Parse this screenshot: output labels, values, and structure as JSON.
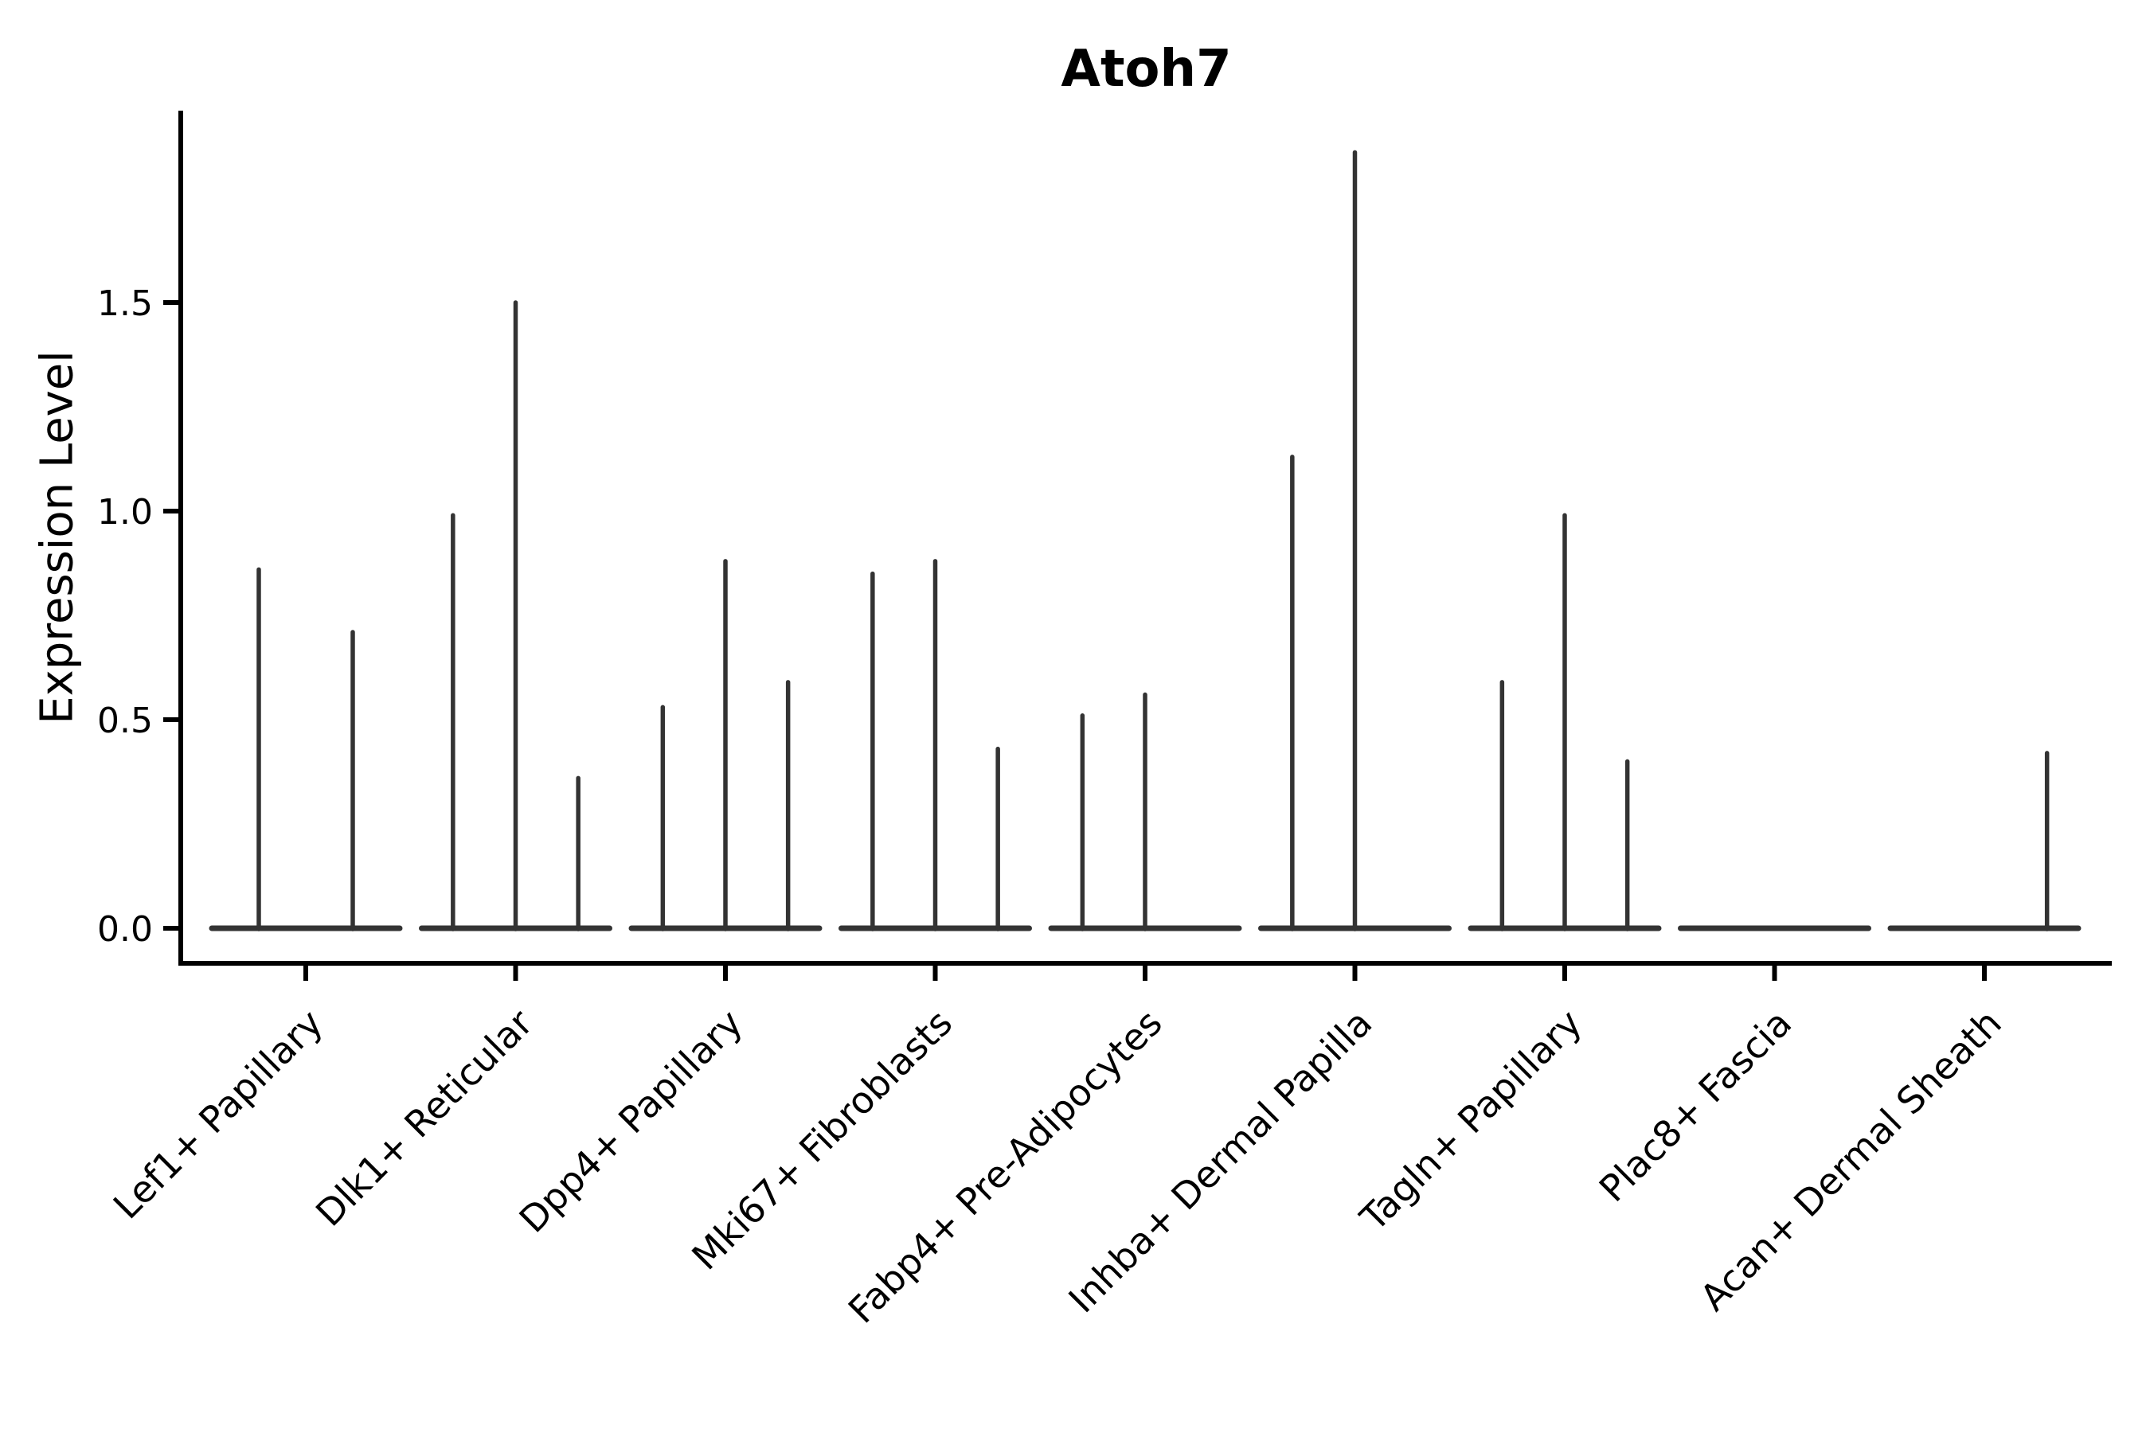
{
  "figure": {
    "title": "Atoh7",
    "background_color": "#ffffff"
  },
  "chart_data": {
    "type": "violin",
    "title": "Atoh7",
    "xlabel": "",
    "ylabel": "Expression Level",
    "yticks": [
      0.0,
      0.5,
      1.0,
      1.5
    ],
    "ytick_labels": [
      "0.0",
      "0.5",
      "1.0",
      "1.5"
    ],
    "ylim": [
      -0.084,
      1.957
    ],
    "grid": false,
    "legend": "none",
    "description": "Sparse single-cell violin plot: each cell-type group shows adjacent near-zero-width violins (flat baseline at 0 with thin vertical spikes at max expression).",
    "categories": [
      "Lef1+ Papillary",
      "Dlk1+ Reticular",
      "Dpp4+ Papillary",
      "Mki67+ Fibroblasts",
      "Fabp4+ Pre-Adipocytes",
      "Inhba+ Dermal Papilla",
      "Tagln+ Papillary",
      "Plac8+ Fascia",
      "Acan+ Dermal Sheath"
    ],
    "groups": [
      {
        "label": "Lef1+ Papillary",
        "violin_max_values": [
          0.86,
          0.71
        ]
      },
      {
        "label": "Dlk1+ Reticular",
        "violin_max_values": [
          0.99,
          1.5,
          0.36
        ]
      },
      {
        "label": "Dpp4+ Papillary",
        "violin_max_values": [
          0.53,
          0.88,
          0.59
        ]
      },
      {
        "label": "Mki67+ Fibroblasts",
        "violin_max_values": [
          0.85,
          0.88,
          0.43
        ]
      },
      {
        "label": "Fabp4+ Pre-Adipocytes",
        "violin_max_values": [
          0.51,
          0.56,
          0
        ]
      },
      {
        "label": "Inhba+ Dermal Papilla",
        "violin_max_values": [
          1.13,
          1.86,
          0
        ]
      },
      {
        "label": "Tagln+ Papillary",
        "violin_max_values": [
          0.59,
          0.99,
          0.4
        ]
      },
      {
        "label": "Plac8+ Fascia",
        "violin_max_values": [
          0,
          0,
          0
        ]
      },
      {
        "label": "Acan+ Dermal Sheath",
        "violin_max_values": [
          0,
          0,
          0.42
        ]
      }
    ],
    "colors": {
      "violin": "#333333",
      "axis": "#000000",
      "text": "#000000"
    }
  }
}
